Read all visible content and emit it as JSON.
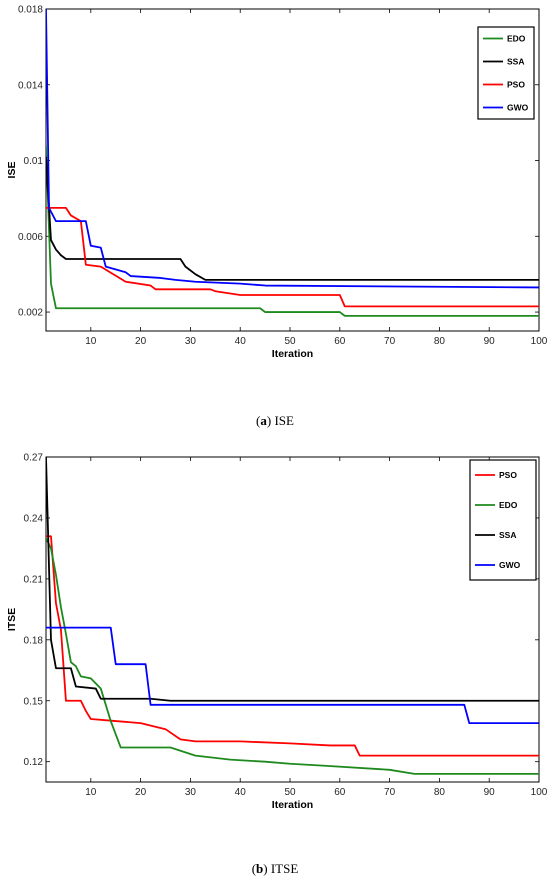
{
  "chart_data": [
    {
      "type": "line",
      "caption_letter": "a",
      "caption_text": "ISE",
      "xlabel": "Iteration",
      "ylabel": "ISE",
      "xlim": [
        1,
        100
      ],
      "ylim": [
        0.001,
        0.018
      ],
      "xticks": [
        10,
        20,
        30,
        40,
        50,
        60,
        70,
        80,
        90,
        100
      ],
      "yticks": [
        0.002,
        0.006,
        0.01,
        0.014,
        0.018
      ],
      "ytick_labels": [
        "0.002",
        "0.006",
        "0.01",
        "0.014",
        "0.018"
      ],
      "legend_position": "top-right",
      "series": [
        {
          "name": "EDO",
          "color": "#1e8a1e",
          "points": [
            [
              1,
              0.0108
            ],
            [
              2,
              0.0035
            ],
            [
              3,
              0.0022
            ],
            [
              44,
              0.0022
            ],
            [
              45,
              0.002
            ],
            [
              60,
              0.002
            ],
            [
              61,
              0.0018
            ],
            [
              100,
              0.0018
            ]
          ]
        },
        {
          "name": "SSA",
          "color": "#000000",
          "points": [
            [
              1,
              0.0102
            ],
            [
              2,
              0.0058
            ],
            [
              3,
              0.0053
            ],
            [
              4,
              0.005
            ],
            [
              5,
              0.0048
            ],
            [
              28,
              0.0048
            ],
            [
              29,
              0.0044
            ],
            [
              31,
              0.004
            ],
            [
              33,
              0.0037
            ],
            [
              100,
              0.0037
            ]
          ]
        },
        {
          "name": "PSO",
          "color": "#ff0000",
          "points": [
            [
              1,
              0.0075
            ],
            [
              5,
              0.0075
            ],
            [
              6,
              0.0071
            ],
            [
              8,
              0.0068
            ],
            [
              9,
              0.0045
            ],
            [
              12,
              0.0044
            ],
            [
              17,
              0.0036
            ],
            [
              22,
              0.0034
            ],
            [
              23,
              0.0032
            ],
            [
              34,
              0.0032
            ],
            [
              35,
              0.0031
            ],
            [
              40,
              0.0029
            ],
            [
              60,
              0.0029
            ],
            [
              61,
              0.0023
            ],
            [
              100,
              0.0023
            ]
          ]
        },
        {
          "name": "GWO",
          "color": "#0000ff",
          "points": [
            [
              1,
              0.018
            ],
            [
              1.6,
              0.0075
            ],
            [
              3,
              0.0068
            ],
            [
              9,
              0.0068
            ],
            [
              10,
              0.0055
            ],
            [
              12,
              0.0054
            ],
            [
              13,
              0.0044
            ],
            [
              17,
              0.0041
            ],
            [
              18,
              0.0039
            ],
            [
              24,
              0.0038
            ],
            [
              27,
              0.0037
            ],
            [
              31,
              0.0036
            ],
            [
              40,
              0.0035
            ],
            [
              45,
              0.0034
            ],
            [
              100,
              0.0033
            ]
          ]
        }
      ]
    },
    {
      "type": "line",
      "caption_letter": "b",
      "caption_text": "ITSE",
      "xlabel": "Iteration",
      "ylabel": "ITSE",
      "xlim": [
        1,
        100
      ],
      "ylim": [
        0.11,
        0.27
      ],
      "xticks": [
        10,
        20,
        30,
        40,
        50,
        60,
        70,
        80,
        90,
        100
      ],
      "yticks": [
        0.12,
        0.15,
        0.18,
        0.21,
        0.24,
        0.27
      ],
      "ytick_labels": [
        "0.12",
        "0.15",
        "0.18",
        "0.21",
        "0.24",
        "0.27"
      ],
      "legend_position": "top-right",
      "series": [
        {
          "name": "PSO",
          "color": "#ff0000",
          "points": [
            [
              1,
              0.231
            ],
            [
              2,
              0.231
            ],
            [
              3,
              0.198
            ],
            [
              4,
              0.185
            ],
            [
              5,
              0.15
            ],
            [
              8,
              0.15
            ],
            [
              9,
              0.145
            ],
            [
              10,
              0.141
            ],
            [
              15,
              0.14
            ],
            [
              20,
              0.139
            ],
            [
              25,
              0.136
            ],
            [
              28,
              0.131
            ],
            [
              31,
              0.13
            ],
            [
              40,
              0.13
            ],
            [
              50,
              0.129
            ],
            [
              58,
              0.128
            ],
            [
              63,
              0.128
            ],
            [
              64,
              0.123
            ],
            [
              100,
              0.123
            ]
          ]
        },
        {
          "name": "EDO",
          "color": "#1e8a1e",
          "points": [
            [
              1,
              0.23
            ],
            [
              2,
              0.225
            ],
            [
              3,
              0.212
            ],
            [
              4,
              0.196
            ],
            [
              5,
              0.183
            ],
            [
              6,
              0.169
            ],
            [
              7,
              0.167
            ],
            [
              8,
              0.162
            ],
            [
              10,
              0.161
            ],
            [
              12,
              0.156
            ],
            [
              14,
              0.14
            ],
            [
              16,
              0.127
            ],
            [
              26,
              0.127
            ],
            [
              31,
              0.123
            ],
            [
              38,
              0.121
            ],
            [
              45,
              0.12
            ],
            [
              50,
              0.119
            ],
            [
              57,
              0.118
            ],
            [
              70,
              0.116
            ],
            [
              75,
              0.114
            ],
            [
              100,
              0.114
            ]
          ]
        },
        {
          "name": "SSA",
          "color": "#000000",
          "points": [
            [
              1,
              0.27
            ],
            [
              2,
              0.18
            ],
            [
              3,
              0.166
            ],
            [
              6,
              0.166
            ],
            [
              7,
              0.157
            ],
            [
              11,
              0.156
            ],
            [
              12,
              0.151
            ],
            [
              22,
              0.151
            ],
            [
              26,
              0.15
            ],
            [
              100,
              0.15
            ]
          ]
        },
        {
          "name": "GWO",
          "color": "#0000ff",
          "points": [
            [
              1,
              0.186
            ],
            [
              14,
              0.186
            ],
            [
              15,
              0.168
            ],
            [
              21,
              0.168
            ],
            [
              22,
              0.148
            ],
            [
              85,
              0.148
            ],
            [
              86,
              0.139
            ],
            [
              100,
              0.139
            ]
          ]
        }
      ]
    }
  ]
}
